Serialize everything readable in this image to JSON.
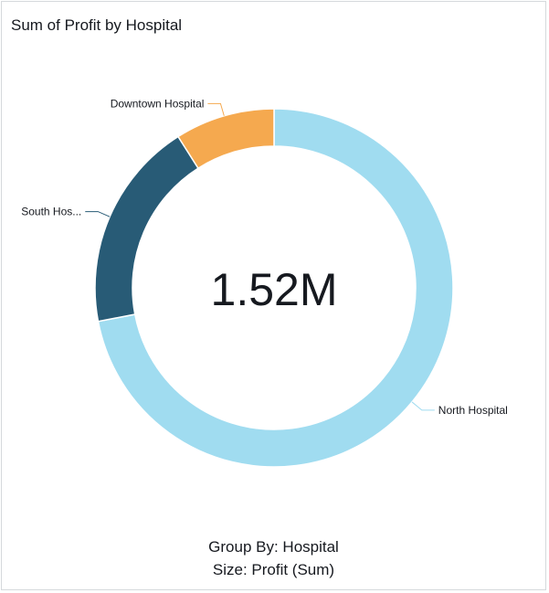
{
  "title": "Sum of Profit by Hospital",
  "footer": {
    "group_by": "Group By: Hospital",
    "size": "Size: Profit (Sum)"
  },
  "colors": {
    "north": "#a0dcf0",
    "south": "#285b76",
    "downtown": "#f5a94f",
    "text": "#16191f"
  },
  "chart_data": {
    "type": "pie",
    "variant": "donut",
    "center_total": "1.52M",
    "categories": [
      "North Hospital",
      "South Hos...",
      "Downtown Hospital"
    ],
    "slice_fractions": [
      0.72,
      0.19,
      0.09
    ],
    "series_colors": [
      "#a0dcf0",
      "#285b76",
      "#f5a94f"
    ],
    "legend": "none"
  }
}
